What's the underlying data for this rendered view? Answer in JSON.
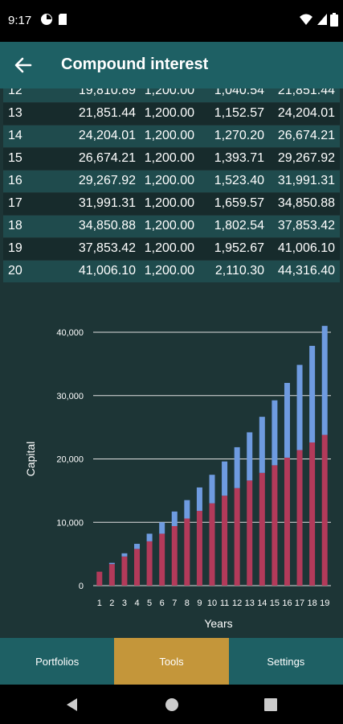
{
  "status_bar": {
    "time": "9:17"
  },
  "app_bar": {
    "title": "Compound interest"
  },
  "table": {
    "rows": [
      [
        "12",
        "19,810.89",
        "1,200.00",
        "1,040.54",
        "21,851.44"
      ],
      [
        "13",
        "21,851.44",
        "1,200.00",
        "1,152.57",
        "24,204.01"
      ],
      [
        "14",
        "24,204.01",
        "1,200.00",
        "1,270.20",
        "26,674.21"
      ],
      [
        "15",
        "26,674.21",
        "1,200.00",
        "1,393.71",
        "29,267.92"
      ],
      [
        "16",
        "29,267.92",
        "1,200.00",
        "1,523.40",
        "31,991.31"
      ],
      [
        "17",
        "31,991.31",
        "1,200.00",
        "1,659.57",
        "34,850.88"
      ],
      [
        "18",
        "34,850.88",
        "1,200.00",
        "1,802.54",
        "37,853.42"
      ],
      [
        "19",
        "37,853.42",
        "1,200.00",
        "1,952.67",
        "41,006.10"
      ],
      [
        "20",
        "41,006.10",
        "1,200.00",
        "2,110.30",
        "44,316.40"
      ]
    ]
  },
  "chart_data": {
    "type": "bar",
    "stacked": true,
    "xlabel": "Years",
    "ylabel": "Capital",
    "categories": [
      "1",
      "2",
      "3",
      "4",
      "5",
      "6",
      "7",
      "8",
      "9",
      "10",
      "11",
      "12",
      "13",
      "14",
      "15",
      "16",
      "17",
      "18",
      "19"
    ],
    "ylim": [
      0,
      40000
    ],
    "yticks": [
      0,
      10000,
      20000,
      30000,
      40000
    ],
    "ytick_labels": [
      "0",
      "10,000",
      "20,000",
      "30,000",
      "40,000"
    ],
    "grid": true,
    "series": [
      {
        "values": [
          2200,
          3400,
          4600,
          5800,
          7000,
          8200,
          9400,
          10600,
          11800,
          13000,
          14200,
          15400,
          16600,
          17800,
          19000,
          20200,
          21400,
          22600,
          23800
        ],
        "color": "#b23a5a"
      },
      {
        "values": [
          0,
          200,
          500,
          800,
          1200,
          1800,
          2300,
          2900,
          3700,
          4500,
          5400,
          6450,
          7600,
          8850,
          10250,
          11800,
          13450,
          15250,
          17200
        ],
        "color": "#6e9be0"
      }
    ]
  },
  "bottom_nav": {
    "tabs": [
      {
        "label": "Portfolios",
        "active": false
      },
      {
        "label": "Tools",
        "active": true
      },
      {
        "label": "Settings",
        "active": false
      }
    ]
  },
  "colors": {
    "appbar": "#1e6064",
    "active_tab": "#c4963a",
    "background": "#1d3536"
  }
}
